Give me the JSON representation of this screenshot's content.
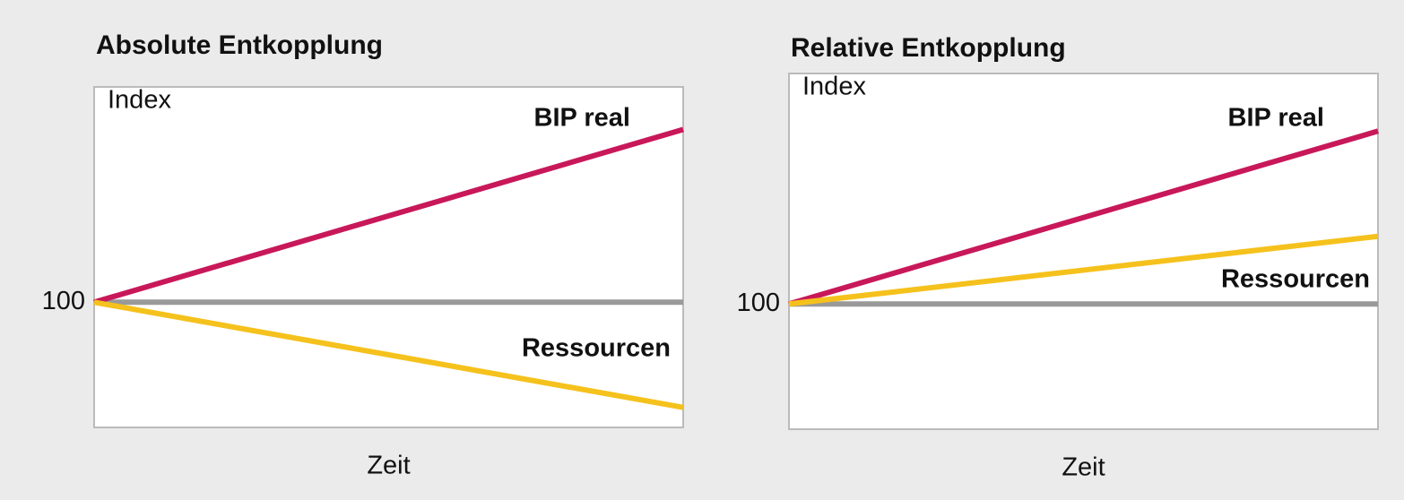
{
  "chart_data": [
    {
      "type": "line",
      "title": "Absolute Entkopplung",
      "ylabel": "Index",
      "xlabel": "Zeit",
      "categories": [
        null,
        null
      ],
      "ylim": [
        50,
        186
      ],
      "yticks": [
        100
      ],
      "grid": true,
      "grid_color": "#999999",
      "series": [
        {
          "name": "BIP real",
          "color": "#c8185a",
          "values": [
            100,
            169
          ]
        },
        {
          "name": "Ressourcen",
          "color": "#f5c11c",
          "values": [
            100,
            58
          ]
        }
      ]
    },
    {
      "type": "line",
      "title": "Relative Entkopplung",
      "ylabel": "Index",
      "xlabel": "Zeit",
      "categories": [
        null,
        null
      ],
      "ylim": [
        50,
        192
      ],
      "yticks": [
        100
      ],
      "grid": true,
      "grid_color": "#999999",
      "series": [
        {
          "name": "BIP real",
          "color": "#c8185a",
          "values": [
            100,
            169
          ]
        },
        {
          "name": "Ressourcen",
          "color": "#f5c11c",
          "values": [
            100,
            127
          ]
        }
      ]
    }
  ]
}
